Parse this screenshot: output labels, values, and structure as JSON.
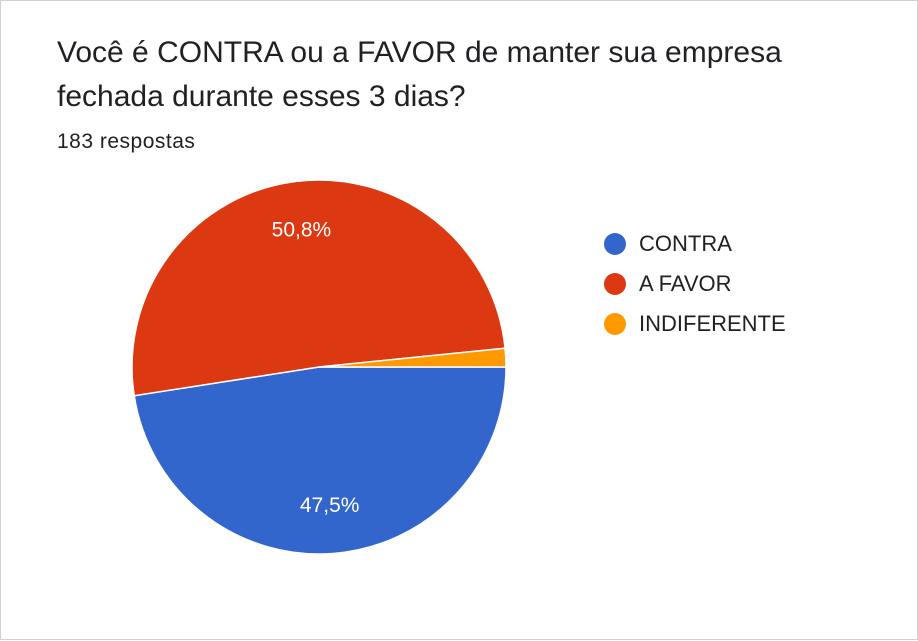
{
  "question": {
    "title": "Você é CONTRA ou a FAVOR de manter sua empresa fechada durante esses 3 dias?",
    "responses": "183 respostas"
  },
  "chart_data": {
    "type": "pie",
    "title": "Você é CONTRA ou a FAVOR de manter sua empresa fechada durante esses 3 dias?",
    "categories": [
      "CONTRA",
      "A FAVOR",
      "INDIFERENTE"
    ],
    "values": [
      47.5,
      50.8,
      1.6
    ],
    "data_labels": [
      "47,5%",
      "50,8%",
      ""
    ],
    "colors": [
      "#3366cc",
      "#dc3912",
      "#ff9900"
    ],
    "legend_position": "right"
  }
}
